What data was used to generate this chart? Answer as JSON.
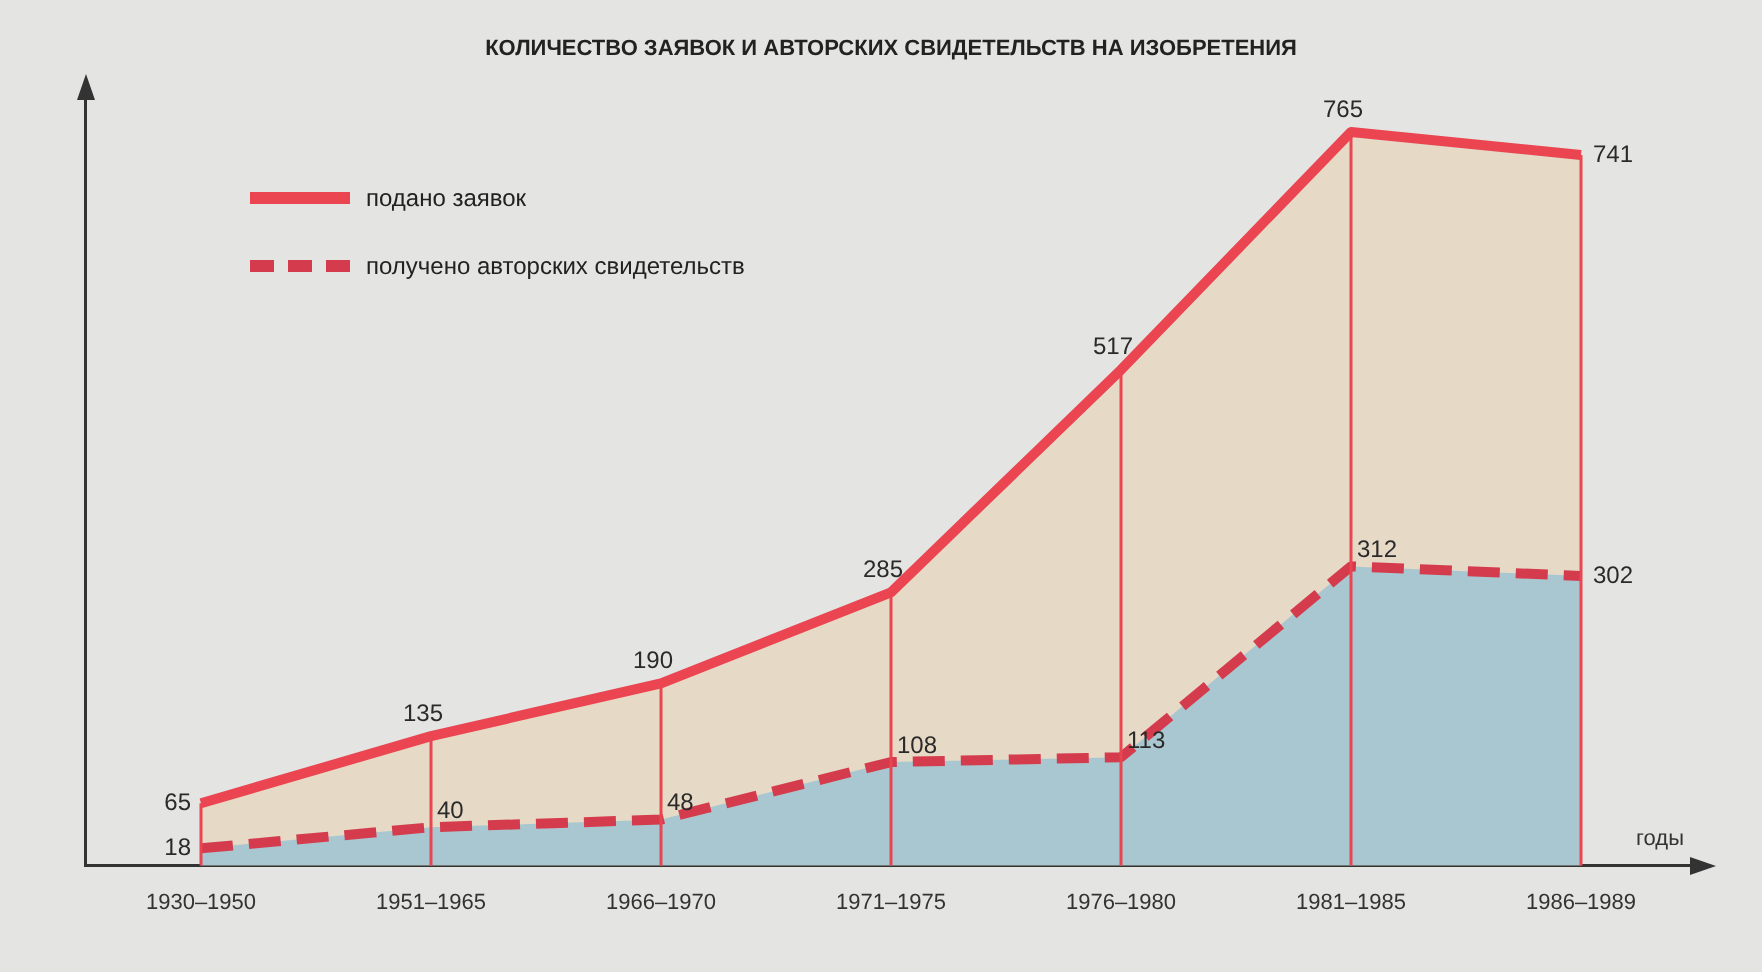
{
  "chart_data": {
    "type": "area",
    "title": "КОЛИЧЕСТВО ЗАЯВОК И АВТОРСКИХ СВИДЕТЕЛЬСТВ НА ИЗОБРЕТЕНИЯ",
    "xlabel": "годы",
    "categories": [
      "1930–1950",
      "1951–1965",
      "1966–1970",
      "1971–1975",
      "1976–1980",
      "1981–1985",
      "1986–1989"
    ],
    "series": [
      {
        "name": "подано заявок",
        "color": "#ea4550",
        "line_style": "solid",
        "values": [
          65,
          135,
          190,
          285,
          517,
          765,
          741
        ]
      },
      {
        "name": "получено авторских свидетельств",
        "color": "#d43c4e",
        "line_style": "dashed",
        "values": [
          18,
          40,
          48,
          108,
          113,
          312,
          302
        ]
      }
    ],
    "data_labels": true,
    "legend": "top left",
    "marker": "none",
    "grid": "x",
    "tick_labels": "x"
  }
}
